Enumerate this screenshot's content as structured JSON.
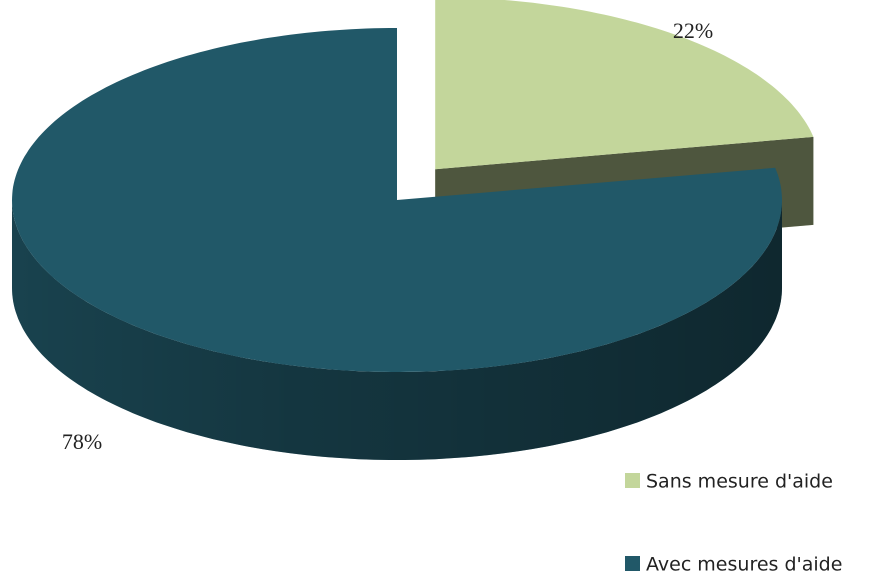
{
  "chart_data": {
    "type": "pie",
    "categories": [
      "Sans mesure d'aide",
      "Avec mesures d'aide"
    ],
    "values": [
      22,
      78
    ],
    "value_labels": [
      "22%",
      "78%"
    ],
    "colors": [
      "#c3d69b",
      "#215868"
    ]
  }
}
